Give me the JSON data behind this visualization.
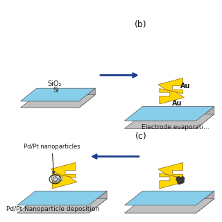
{
  "bg_color": "#ffffff",
  "chip_top_color": "#87CEEB",
  "chip_side_color": "#b0b0b0",
  "chip_si_color": "#c0c0c0",
  "gold_color": "#FFD700",
  "arrow_color": "#1a3a8a",
  "nanoparticle_color": "#404040",
  "nanoparticle_outline": "#202020",
  "label_b": "(b)",
  "label_c": "(c)",
  "text_sio2": "SiO₂",
  "text_si": "Si",
  "text_au1": "Au",
  "text_au2": "Au",
  "text_electrode": "Electrode evaporati...",
  "text_nanoparticles": "Pd/Pt nanoparticles",
  "text_deposition": "Pd/Pt Nanoparticle deposition"
}
